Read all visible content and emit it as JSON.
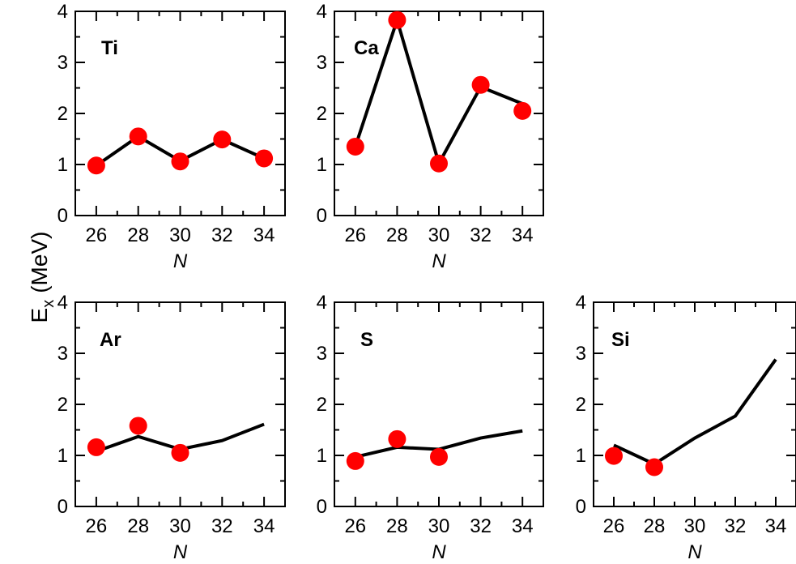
{
  "figure": {
    "ylabel_main": "E",
    "ylabel_sub": "x",
    "ylabel_unit": "(MeV)"
  },
  "chart_data": [
    {
      "type": "line",
      "label": "Ti",
      "xlabel": "N",
      "x_ticks": [
        26,
        28,
        30,
        32,
        34
      ],
      "y_ticks": [
        0,
        1,
        2,
        3,
        4
      ],
      "xlim": [
        25,
        35
      ],
      "ylim": [
        0,
        4
      ],
      "theory": {
        "x": [
          26,
          28,
          30,
          32,
          34
        ],
        "y": [
          0.98,
          1.55,
          1.07,
          1.49,
          1.12
        ]
      },
      "experiment": {
        "x": [
          26,
          28,
          30,
          32,
          34
        ],
        "y": [
          0.98,
          1.55,
          1.06,
          1.49,
          1.12
        ]
      }
    },
    {
      "type": "line",
      "label": "Ca",
      "xlabel": "N",
      "x_ticks": [
        26,
        28,
        30,
        32,
        34
      ],
      "y_ticks": [
        0,
        1,
        2,
        3,
        4
      ],
      "xlim": [
        25,
        35
      ],
      "ylim": [
        0,
        4
      ],
      "theory": {
        "x": [
          26,
          28,
          30,
          32,
          34
        ],
        "y": [
          1.35,
          3.83,
          1.02,
          2.52,
          2.19
        ]
      },
      "experiment": {
        "x": [
          26,
          28,
          30,
          32,
          34
        ],
        "y": [
          1.35,
          3.83,
          1.02,
          2.56,
          2.05
        ]
      }
    },
    {
      "type": "line",
      "label": "Ar",
      "xlabel": "N",
      "x_ticks": [
        26,
        28,
        30,
        32,
        34
      ],
      "y_ticks": [
        0,
        1,
        2,
        3,
        4
      ],
      "xlim": [
        25,
        35
      ],
      "ylim": [
        0,
        4
      ],
      "theory": {
        "x": [
          26,
          28,
          30,
          32,
          34
        ],
        "y": [
          1.08,
          1.37,
          1.12,
          1.29,
          1.61
        ]
      },
      "experiment": {
        "x": [
          26,
          28,
          30
        ],
        "y": [
          1.16,
          1.58,
          1.05
        ]
      }
    },
    {
      "type": "line",
      "label": "S",
      "xlabel": "N",
      "x_ticks": [
        26,
        28,
        30,
        32,
        34
      ],
      "y_ticks": [
        0,
        1,
        2,
        3,
        4
      ],
      "xlim": [
        25,
        35
      ],
      "ylim": [
        0,
        4
      ],
      "theory": {
        "x": [
          26,
          28,
          30,
          32,
          34
        ],
        "y": [
          0.97,
          1.16,
          1.12,
          1.34,
          1.48
        ]
      },
      "experiment": {
        "x": [
          26,
          28,
          30
        ],
        "y": [
          0.89,
          1.32,
          0.97
        ]
      }
    },
    {
      "type": "line",
      "label": "Si",
      "xlabel": "N",
      "x_ticks": [
        26,
        28,
        30,
        32,
        34
      ],
      "y_ticks": [
        0,
        1,
        2,
        3,
        4
      ],
      "xlim": [
        25,
        35
      ],
      "ylim": [
        0,
        4
      ],
      "theory": {
        "x": [
          26,
          28,
          30,
          32,
          34
        ],
        "y": [
          1.2,
          0.83,
          1.34,
          1.77,
          2.88
        ]
      },
      "experiment": {
        "x": [
          26,
          28
        ],
        "y": [
          0.99,
          0.77
        ]
      }
    }
  ]
}
